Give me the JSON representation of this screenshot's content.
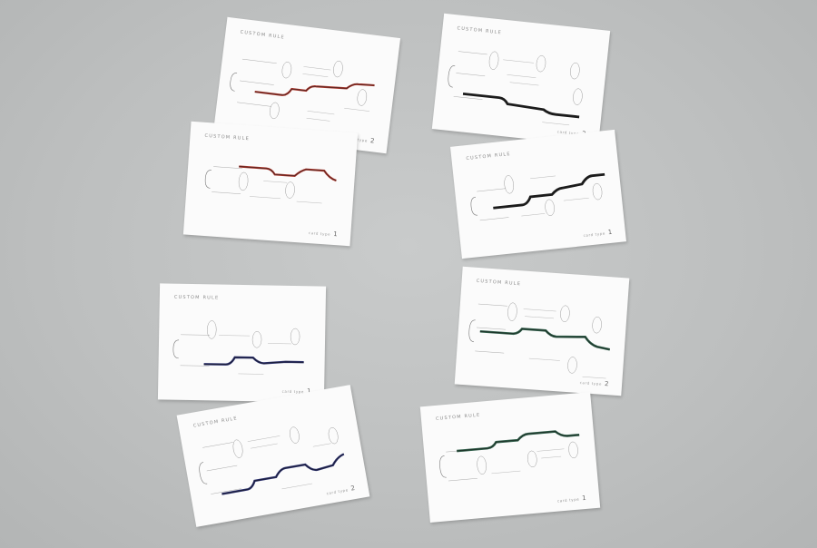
{
  "scene": {
    "background": "#c0c2c2",
    "accent_colors": {
      "red": "#a8352b",
      "navy": "#2a2f6a",
      "black": "#1b1b1b",
      "green": "#2e5b47"
    }
  },
  "cards": [
    {
      "title": "CUSTOM RULE",
      "footer": "card type",
      "number": "2",
      "ink": "red"
    },
    {
      "title": "CUSTOM RULE",
      "footer": "card type",
      "number": "1",
      "ink": "red"
    },
    {
      "title": "CUSTOM RULE",
      "footer": "card type",
      "number": "1",
      "ink": "navy"
    },
    {
      "title": "CUSTOM RULE",
      "footer": "card type",
      "number": "2",
      "ink": "navy"
    },
    {
      "title": "CUSTOM RULE",
      "footer": "card type",
      "number": "2",
      "ink": "black"
    },
    {
      "title": "CUSTOM RULE",
      "footer": "card type",
      "number": "1",
      "ink": "black"
    },
    {
      "title": "CUSTOM RULE",
      "footer": "card type",
      "number": "2",
      "ink": "green"
    },
    {
      "title": "CUSTOM RULE",
      "footer": "card type",
      "number": "1",
      "ink": "green"
    }
  ]
}
